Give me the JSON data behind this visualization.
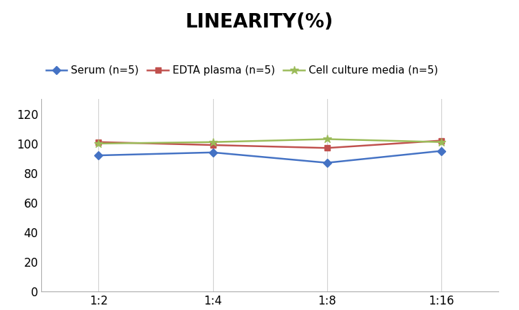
{
  "title": "LINEARITY(%)",
  "x_labels": [
    "1:2",
    "1:4",
    "1:8",
    "1:16"
  ],
  "x_positions": [
    0,
    1,
    2,
    3
  ],
  "series": [
    {
      "name": "Serum (n=5)",
      "values": [
        92,
        94,
        87,
        95
      ],
      "color": "#4472C4",
      "marker": "D",
      "marker_size": 6,
      "linewidth": 1.8
    },
    {
      "name": "EDTA plasma (n=5)",
      "values": [
        101,
        99,
        97,
        102
      ],
      "color": "#C0504D",
      "marker": "s",
      "marker_size": 6,
      "linewidth": 1.8
    },
    {
      "name": "Cell culture media (n=5)",
      "values": [
        100,
        101,
        103,
        101
      ],
      "color": "#9BBB59",
      "marker": "*",
      "marker_size": 9,
      "linewidth": 1.8
    }
  ],
  "ylim": [
    0,
    130
  ],
  "yticks": [
    0,
    20,
    40,
    60,
    80,
    100,
    120
  ],
  "background_color": "#FFFFFF",
  "title_fontsize": 20,
  "tick_fontsize": 12,
  "legend_fontsize": 11,
  "grid_color": "#D0D0D0"
}
